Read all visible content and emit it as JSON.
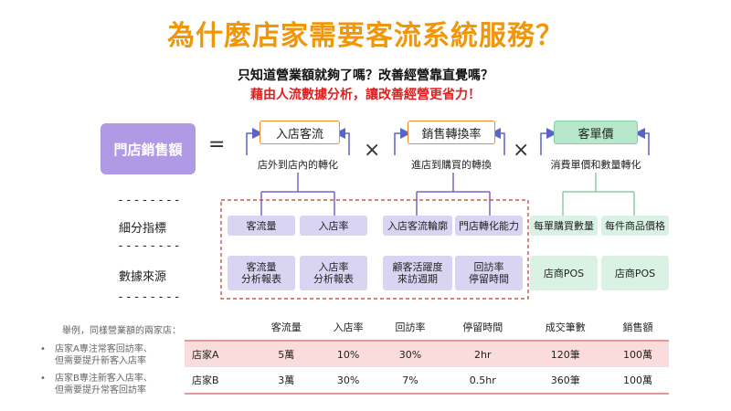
{
  "title": "為什麼店家需要客流系統服務？",
  "subtitle1": "只知道營業額就夠了嗎？改善經營靠直覺嗎？",
  "subtitle2": "藉由人流數據分析，讓改善經營更省力！",
  "formula": {
    "lhs": "門店銷售額",
    "equals": "=",
    "times": "×",
    "factors": [
      {
        "head": "入店客流",
        "caption": "店外到店內的轉化"
      },
      {
        "head": "銷售轉換率",
        "caption": "進店到購買的轉換"
      },
      {
        "head": "客單價",
        "caption": "消費單價和數量轉化"
      }
    ]
  },
  "row_labels": {
    "detail": "細分指標",
    "source": "數據來源",
    "dashes": "--------"
  },
  "indicators": [
    "客流量",
    "入店率",
    "入店客流輪廓",
    "門店轉化能力",
    "每單購買數量",
    "每件商品價格"
  ],
  "sources": [
    {
      "l1": "客流量",
      "l2": "分析報表"
    },
    {
      "l1": "入店率",
      "l2": "分析報表"
    },
    {
      "l1": "顧客活躍度",
      "l2": "來訪週期"
    },
    {
      "l1": "回訪率",
      "l2": "停留時間"
    },
    {
      "l1": "店商POS",
      "l2": ""
    },
    {
      "l1": "店商POS",
      "l2": ""
    }
  ],
  "example": {
    "intro": "舉例，同樣營業額的兩家店：",
    "bullets": [
      {
        "l1": "店家A專注常客回訪率、",
        "l2": "但需要提升新客入店率"
      },
      {
        "l1": "店家B專注新客入店率、",
        "l2": "但需要提升常客回訪率"
      }
    ]
  },
  "table": {
    "headers": [
      "",
      "客流量",
      "入店率",
      "回訪率",
      "停留時間",
      "成交筆數",
      "銷售額"
    ],
    "rows": [
      [
        "店家A",
        "5萬",
        "10%",
        "30%",
        "2hr",
        "120筆",
        "100萬"
      ],
      [
        "店家B",
        "3萬",
        "30%",
        "7%",
        "0.5hr",
        "360筆",
        "100萬"
      ]
    ]
  },
  "colors": {
    "title": "#f0960a",
    "highlight": "#e02020",
    "purple": "#b09ae6",
    "orange": "#ef8a2a",
    "green": "#86cfa6",
    "table_line": "#e49a9a"
  }
}
